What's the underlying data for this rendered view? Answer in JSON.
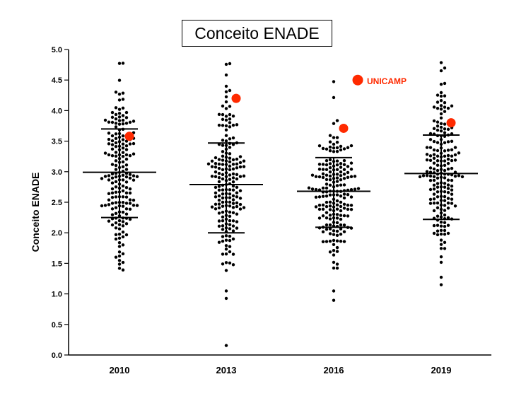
{
  "chart_data": {
    "type": "scatter",
    "title": "Conceito ENADE",
    "ylabel": "Conceito ENADE",
    "xlabel": "",
    "ylim": [
      0,
      5
    ],
    "yticks": [
      "0.0",
      "0.5",
      "1.0",
      "1.5",
      "2.0",
      "2.5",
      "3.0",
      "3.5",
      "4.0",
      "4.5",
      "5.0"
    ],
    "categories": [
      "2010",
      "2013",
      "2016",
      "2019"
    ],
    "groups": [
      {
        "year": "2010",
        "mean": 2.99,
        "sd_low": 2.25,
        "sd_high": 3.7,
        "unicamp": 3.58
      },
      {
        "year": "2013",
        "mean": 2.79,
        "sd_low": 2.0,
        "sd_high": 3.47,
        "unicamp": 4.2
      },
      {
        "year": "2016",
        "mean": 2.68,
        "sd_low": 2.09,
        "sd_high": 3.23,
        "unicamp": 3.71
      },
      {
        "year": "2019",
        "mean": 2.97,
        "sd_low": 2.22,
        "sd_high": 3.6,
        "unicamp": 3.8
      }
    ],
    "annotation": {
      "label": "UNICAMP",
      "value": 4.5
    },
    "colors": {
      "points": "#000000",
      "highlight": "#ff2a00"
    }
  }
}
